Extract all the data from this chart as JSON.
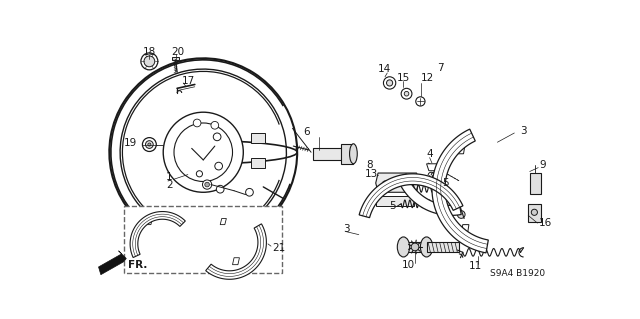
{
  "background_color": "#ffffff",
  "fig_width": 6.4,
  "fig_height": 3.19,
  "dpi": 100,
  "line_color": "#1a1a1a",
  "watermark": "S9A4 B1920"
}
